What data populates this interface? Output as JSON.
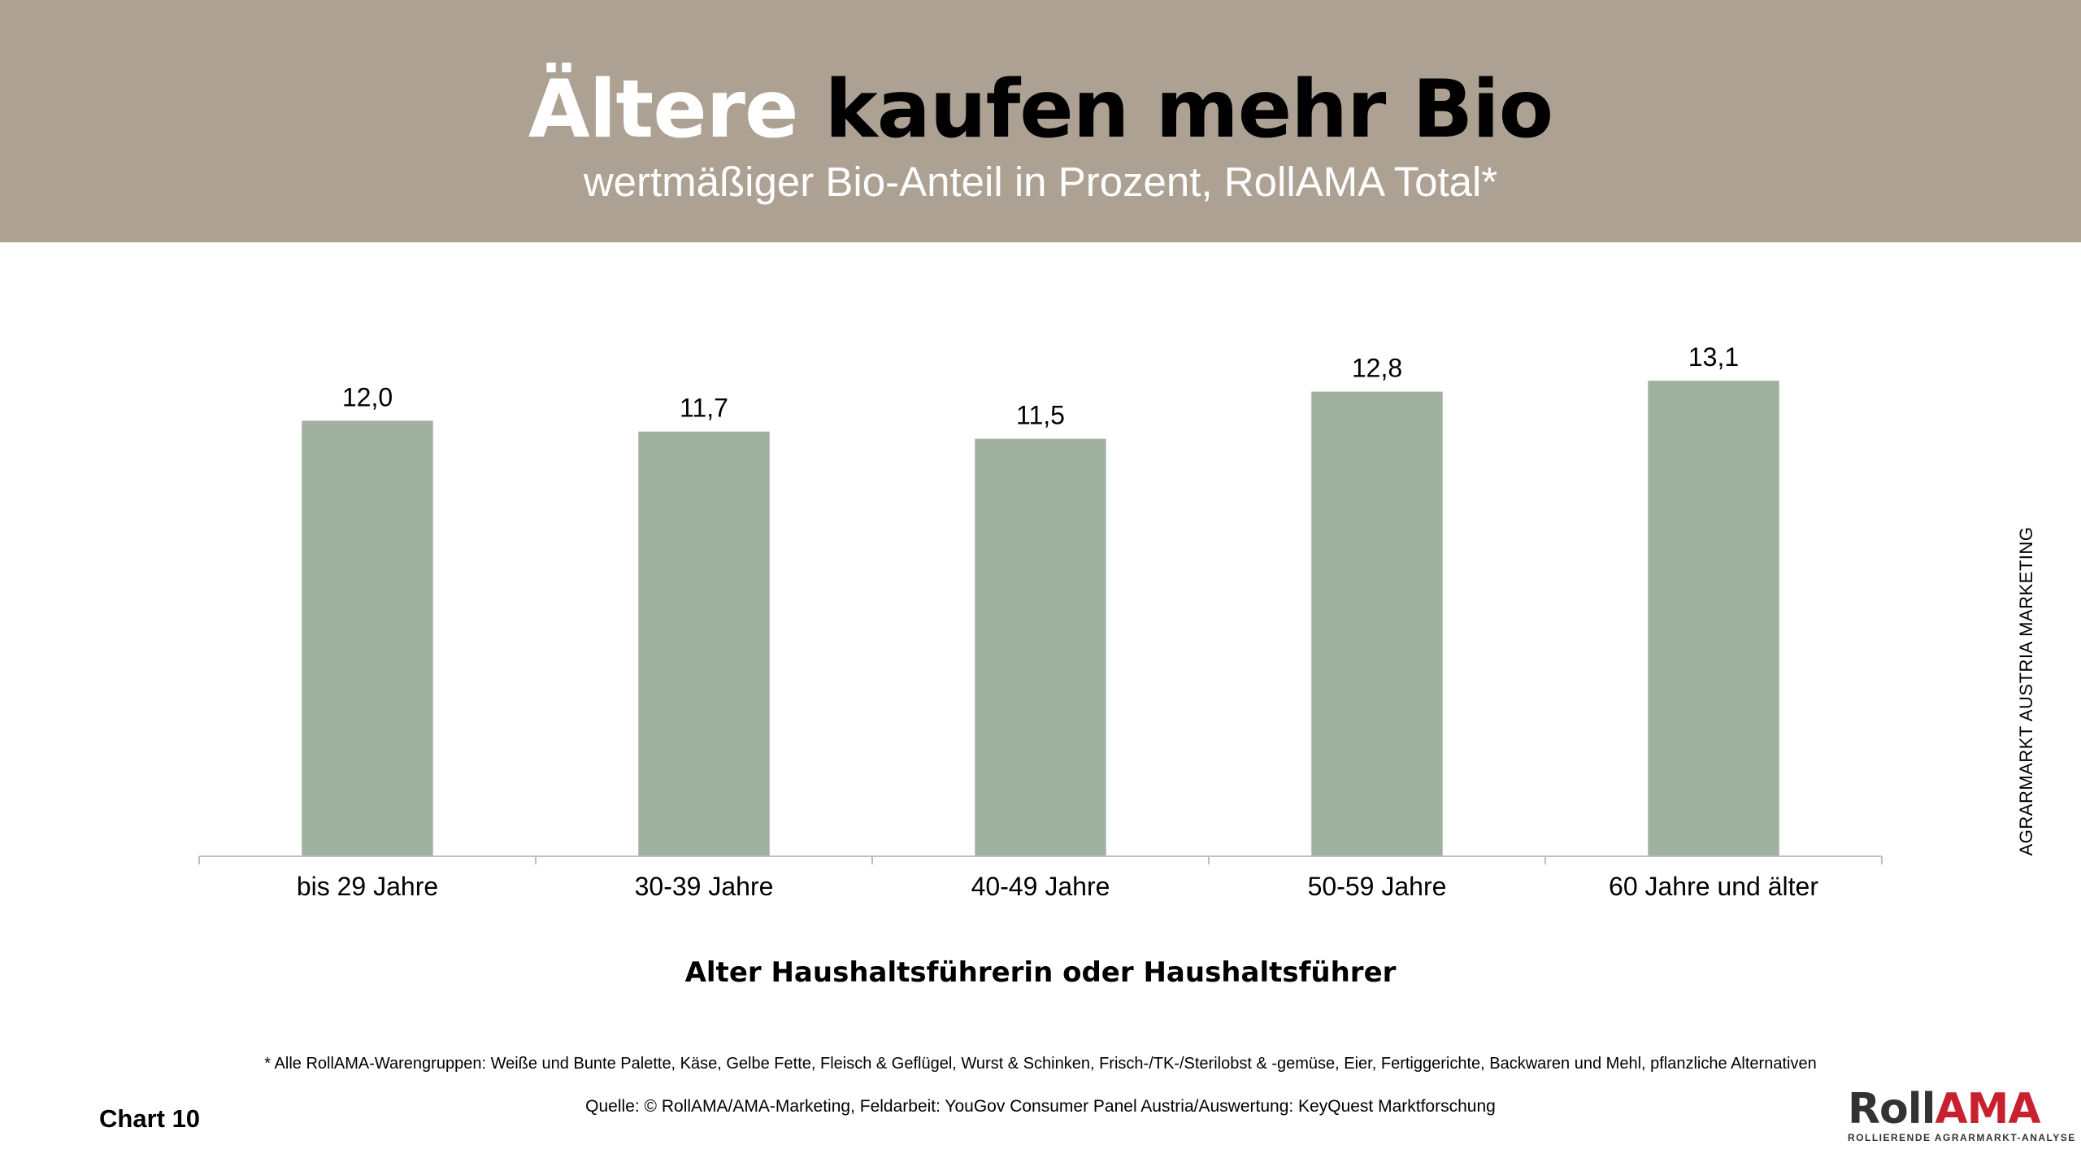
{
  "header": {
    "title_part1": "Ältere",
    "title_part2": "kaufen mehr Bio",
    "subtitle": "wertmäßiger Bio-Anteil in Prozent, RollAMA Total*",
    "background": "#ada193"
  },
  "chart_data": {
    "type": "bar",
    "categories": [
      "bis 29 Jahre",
      "30-39 Jahre",
      "40-49 Jahre",
      "50-59 Jahre",
      "60 Jahre und älter"
    ],
    "values": [
      12.0,
      11.7,
      11.5,
      12.8,
      13.1
    ],
    "value_labels": [
      "12,0",
      "11,7",
      "11,5",
      "12,8",
      "13,1"
    ],
    "xlabel": "Alter Haushaltsführerin oder Haushaltsführer",
    "ylim": [
      0,
      14
    ],
    "grid": false,
    "bar_color": "#a0b29f",
    "axis_color": "#bfbfbf"
  },
  "side_text": "AGRARMARKT AUSTRIA MARKETING",
  "footnote": "* Alle RollAMA-Warengruppen: Weiße und Bunte Palette, Käse, Gelbe Fette, Fleisch & Geflügel, Wurst & Schinken, Frisch-/TK-/Sterilobst & -gemüse, Eier, Fertiggerichte, Backwaren und Mehl, pflanzliche Alternativen",
  "source": "Quelle: © RollAMA/AMA-Marketing, Feldarbeit: YouGov Consumer Panel Austria/Auswertung: KeyQuest Marktforschung",
  "chart_number": "Chart 10",
  "logo": {
    "part1": "Roll",
    "part2": "AMA",
    "tagline": "ROLLIERENDE AGRARMARKT-ANALYSE",
    "accent": "#c8202f"
  }
}
